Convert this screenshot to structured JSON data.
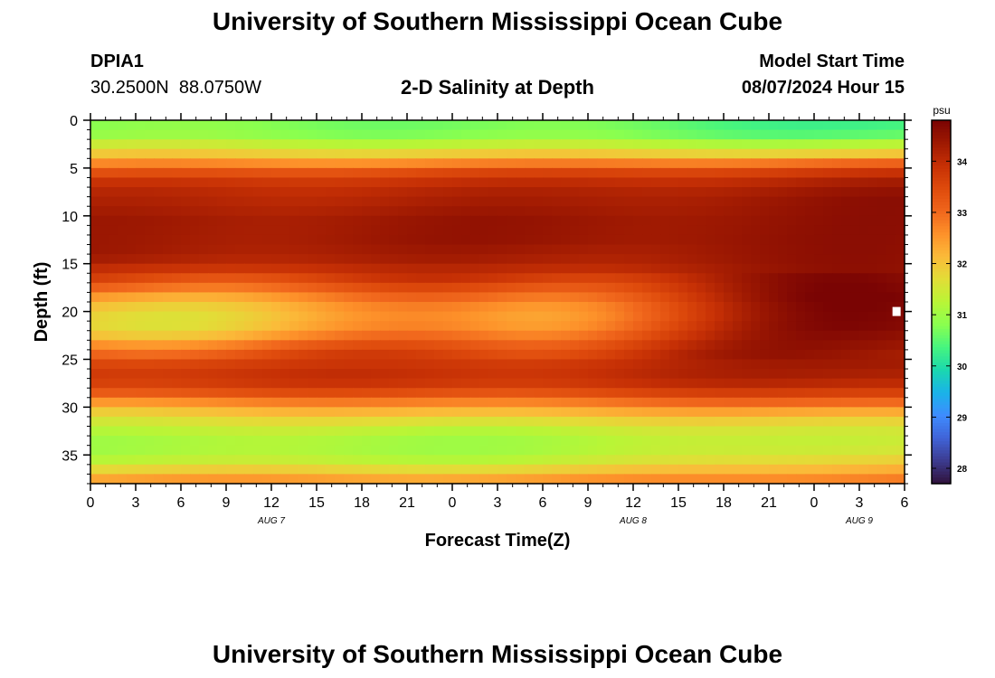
{
  "page_title_top": "University of Southern Mississippi Ocean Cube",
  "page_title_bottom": "University of Southern Mississippi Ocean Cube",
  "station": {
    "id": "DPIA1",
    "coords": "30.2500N  88.0750W"
  },
  "model": {
    "label": "Model Start Time",
    "value": "08/07/2024 Hour 15"
  },
  "colors": {
    "colormap": [
      "#30123b",
      "#3c3b8f",
      "#4063d7",
      "#3e8cfe",
      "#1ab3e9",
      "#1bd8ae",
      "#46f57f",
      "#8aff4f",
      "#b9f536",
      "#e2dd37",
      "#fbba39",
      "#fd912a",
      "#f0661c",
      "#de4a0c",
      "#c63005",
      "#9e1902",
      "#7a0403"
    ],
    "marker": "#ffffff"
  },
  "chart_data": {
    "type": "heatmap",
    "title": "2-D Salinity at Depth",
    "xlabel": "Forecast Time(Z)",
    "ylabel": "Depth (ft)",
    "x_hours_range": [
      0,
      54
    ],
    "x_tick_hours": [
      0,
      3,
      6,
      9,
      12,
      15,
      18,
      21,
      24,
      27,
      30,
      33,
      36,
      39,
      42,
      45,
      48,
      51,
      54
    ],
    "x_tick_labels": [
      "0",
      "3",
      "6",
      "9",
      "12",
      "15",
      "18",
      "21",
      "0",
      "3",
      "6",
      "9",
      "12",
      "15",
      "18",
      "21",
      "0",
      "3",
      "6"
    ],
    "date_labels": [
      {
        "text": "AUG 7",
        "hour": 12
      },
      {
        "text": "AUG 8",
        "hour": 36
      },
      {
        "text": "AUG 9",
        "hour": 51
      }
    ],
    "ylim": [
      0,
      38
    ],
    "y_ticks": [
      0,
      5,
      10,
      15,
      20,
      25,
      30,
      35
    ],
    "y_tick_labels": [
      "0",
      "5",
      "10",
      "15",
      "20",
      "25",
      "30",
      "35"
    ],
    "colorbar": {
      "unit": "psu",
      "range": [
        27.7,
        34.8
      ],
      "ticks": [
        28,
        29,
        30,
        31,
        32,
        33,
        34
      ],
      "tick_labels": [
        "28",
        "29",
        "30",
        "31",
        "32",
        "33",
        "34"
      ]
    },
    "marker": {
      "hour": 53.5,
      "depth": 20
    },
    "grid": {
      "n_depth": 38,
      "n_time": 90,
      "depth_profile_ft": [
        0,
        1,
        2,
        3,
        4,
        5,
        6,
        7,
        8,
        9,
        10,
        11,
        12,
        13,
        14,
        15,
        16,
        17,
        18,
        19,
        20,
        21,
        22,
        23,
        24,
        25,
        26,
        27,
        28,
        29,
        30,
        31,
        32,
        33,
        34,
        35,
        36,
        37
      ],
      "salinity_profile_start": [
        30.8,
        30.9,
        31.4,
        31.9,
        32.6,
        33.3,
        33.8,
        34.0,
        34.1,
        34.2,
        34.3,
        34.3,
        34.3,
        34.3,
        34.2,
        33.9,
        33.5,
        33.0,
        32.4,
        32.0,
        31.8,
        31.8,
        32.1,
        32.7,
        33.2,
        33.6,
        33.8,
        33.7,
        33.3,
        32.6,
        32.0,
        31.6,
        31.3,
        31.1,
        31.1,
        31.3,
        31.8,
        32.4
      ],
      "salinity_profile_mid": [
        30.7,
        30.8,
        31.3,
        31.9,
        32.7,
        33.5,
        33.9,
        34.1,
        34.2,
        34.3,
        34.4,
        34.4,
        34.4,
        34.3,
        34.2,
        34.0,
        33.7,
        33.3,
        32.9,
        32.6,
        32.5,
        32.6,
        32.9,
        33.3,
        33.6,
        33.8,
        33.9,
        33.8,
        33.4,
        32.8,
        32.2,
        31.7,
        31.3,
        31.1,
        31.1,
        31.3,
        31.8,
        32.4
      ],
      "salinity_profile_end": [
        30.3,
        30.5,
        31.2,
        31.9,
        33.0,
        33.8,
        34.2,
        34.4,
        34.5,
        34.5,
        34.5,
        34.5,
        34.5,
        34.5,
        34.5,
        34.5,
        34.6,
        34.7,
        34.8,
        34.8,
        34.8,
        34.8,
        34.7,
        34.6,
        34.5,
        34.4,
        34.3,
        34.1,
        33.7,
        33.1,
        32.4,
        31.9,
        31.6,
        31.5,
        31.6,
        31.9,
        32.3,
        32.8
      ]
    }
  }
}
